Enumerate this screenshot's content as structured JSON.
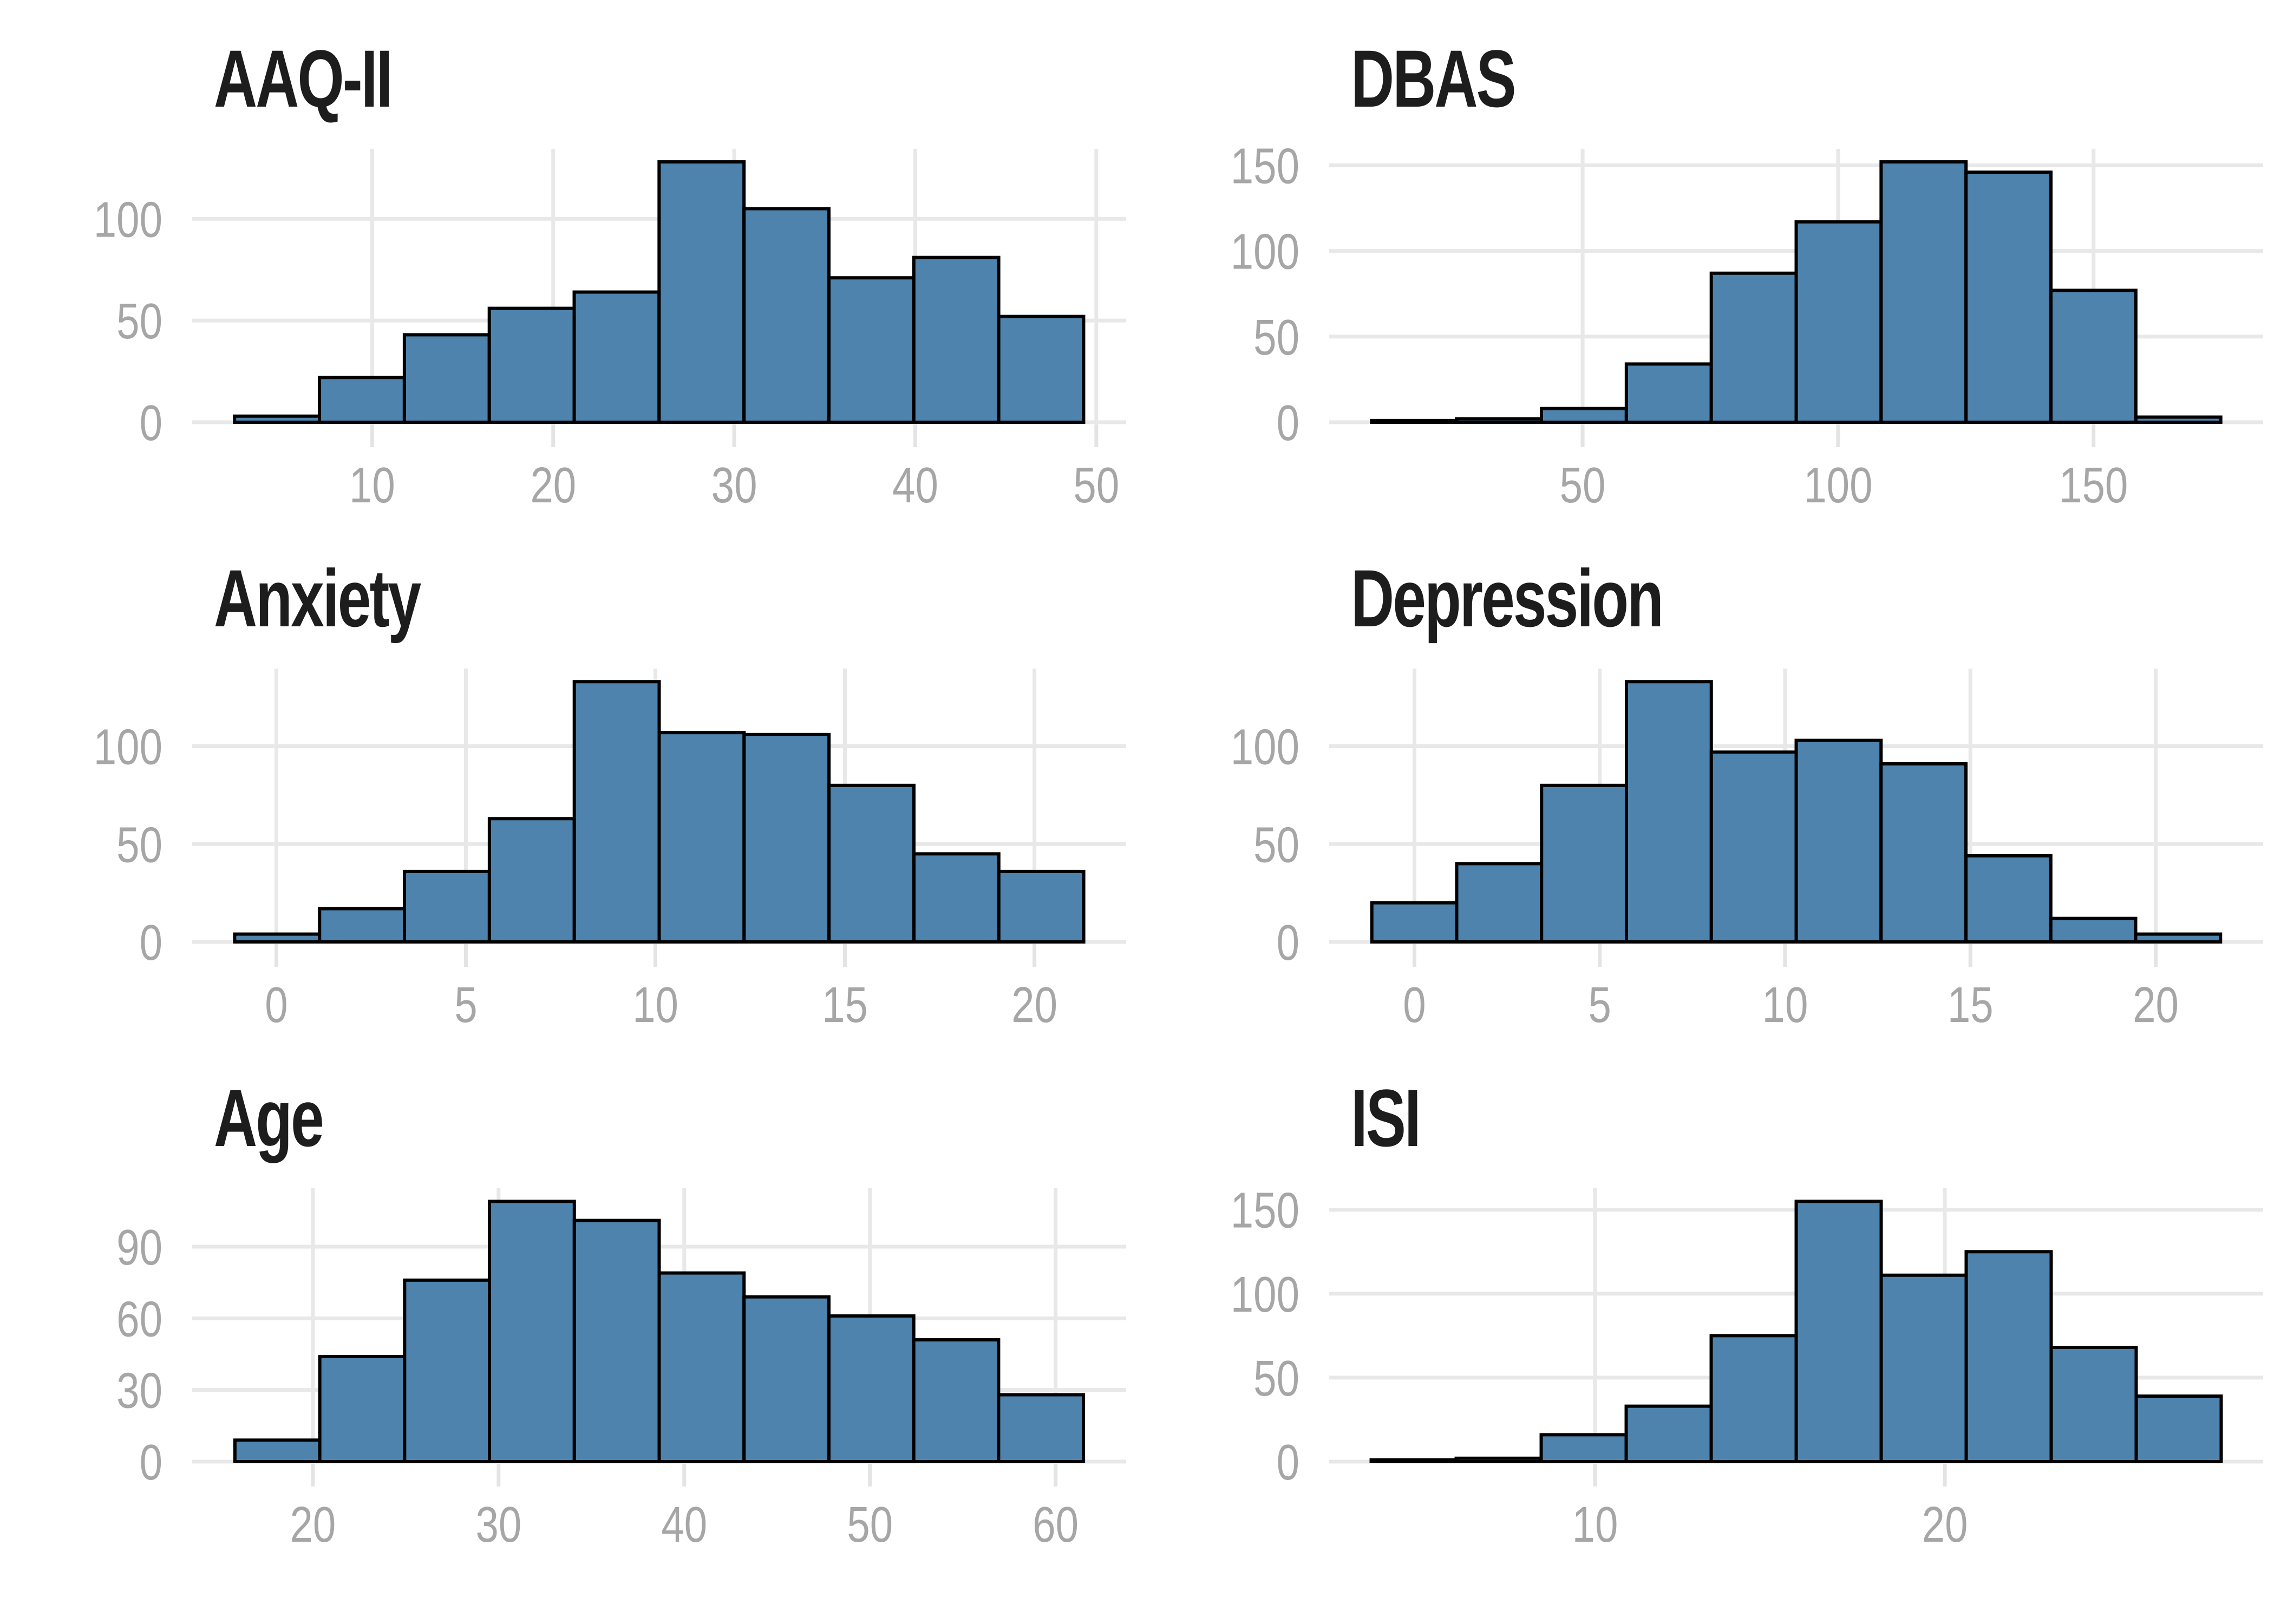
{
  "figure": {
    "background": "#FFFFFF",
    "layout": {
      "rows": 3,
      "cols": 2,
      "order": [
        [
          "AAQ-II",
          "DBAS"
        ],
        [
          "Anxiety",
          "Depression"
        ],
        [
          "Age",
          "ISI"
        ]
      ]
    },
    "colors": {
      "bar_fill": "#4D83AC",
      "bar_stroke": "#000000",
      "gridline": "#E8E8E8",
      "axis_tick": "#E4E4E4",
      "tick_label": "#A6A6A6",
      "title": "#1D1D1D"
    }
  },
  "chart_data": [
    {
      "type": "histogram",
      "title": "AAQ-II",
      "bin_start": 2.4,
      "bin_width": 4.69,
      "counts": [
        3,
        22,
        43,
        56,
        64,
        128,
        105,
        71,
        81,
        52
      ],
      "x_ticks": [
        10,
        20,
        30,
        40,
        50
      ],
      "y_ticks": [
        0,
        50,
        100
      ],
      "x_range": [
        0.06,
        51.65
      ],
      "y_max": 134.4,
      "grid": "major-only",
      "legend": false
    },
    {
      "type": "histogram",
      "title": "DBAS",
      "bin_start": 8.7,
      "bin_width": 16.62,
      "counts": [
        1,
        2,
        8,
        34,
        87,
        117,
        152,
        146,
        77,
        3
      ],
      "x_ticks": [
        50,
        100,
        150
      ],
      "y_ticks": [
        0,
        50,
        100,
        150
      ],
      "x_range": [
        0.4,
        183.2
      ],
      "y_max": 159.6,
      "grid": "major-only",
      "legend": false
    },
    {
      "type": "histogram",
      "title": "Anxiety",
      "bin_start": -1.1,
      "bin_width": 2.24,
      "counts": [
        4,
        17,
        36,
        63,
        133,
        107,
        106,
        80,
        45,
        36
      ],
      "x_ticks": [
        0,
        5,
        10,
        15,
        20
      ],
      "y_ticks": [
        0,
        50,
        100
      ],
      "x_range": [
        -2.22,
        22.42
      ],
      "y_max": 139.7,
      "grid": "major-only",
      "legend": false
    },
    {
      "type": "histogram",
      "title": "Depression",
      "bin_start": -1.15,
      "bin_width": 2.29,
      "counts": [
        20,
        40,
        80,
        133,
        97,
        103,
        91,
        44,
        12,
        4
      ],
      "x_ticks": [
        0,
        5,
        10,
        15,
        20
      ],
      "y_ticks": [
        0,
        50,
        100
      ],
      "x_range": [
        -2.3,
        22.9
      ],
      "y_max": 139.7,
      "grid": "major-only",
      "legend": false
    },
    {
      "type": "histogram",
      "title": "Age",
      "bin_start": 15.8,
      "bin_width": 4.57,
      "counts": [
        9,
        44,
        76,
        109,
        101,
        79,
        69,
        61,
        51,
        28
      ],
      "x_ticks": [
        20,
        30,
        40,
        50,
        60
      ],
      "y_ticks": [
        0,
        30,
        60,
        90
      ],
      "x_range": [
        13.5,
        63.8
      ],
      "y_max": 114.5,
      "grid": "major-only",
      "legend": false
    },
    {
      "type": "histogram",
      "title": "ISI",
      "bin_start": 3.6,
      "bin_width": 2.43,
      "counts": [
        1,
        2,
        16,
        33,
        75,
        155,
        111,
        125,
        68,
        39
      ],
      "x_ticks": [
        10,
        20
      ],
      "y_ticks": [
        0,
        50,
        100,
        150
      ],
      "x_range": [
        2.4,
        29.1
      ],
      "y_max": 162.8,
      "grid": "major-only",
      "legend": false
    }
  ]
}
